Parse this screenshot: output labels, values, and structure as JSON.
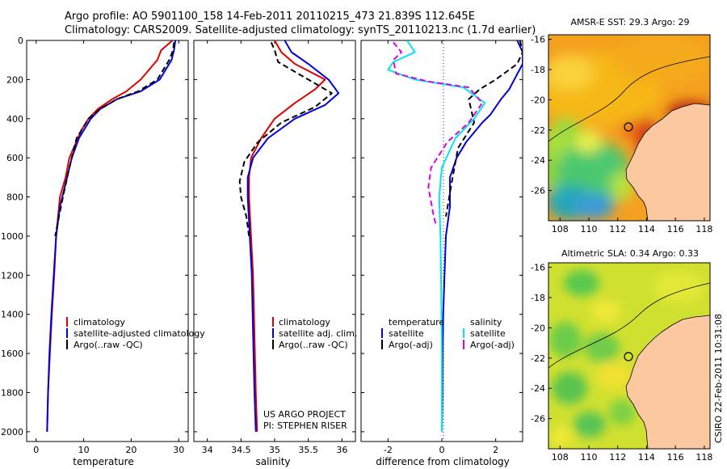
{
  "header": {
    "line1": "Argo profile: AO 5901100_158 14-Feb-2011 20110215_473 21.839S 112.645E",
    "line2": "Climatology: CARS2009. Satellite-adjusted climatology: synTS_20110213.nc (1.7d earlier)"
  },
  "colors": {
    "climatology": "#e00000",
    "satellite": "#0000dd",
    "argo": "#000000",
    "satellite_salinity": "#00e5ee",
    "argo_adj_salinity": "#e000e0",
    "land": "#fbc8a0"
  },
  "credit": {
    "project": "US ARGO PROJECT",
    "pi": "PI: STEPHEN RISER",
    "stamp": "CSIRO 22-Feb-2011 10:31:08"
  },
  "chart_data": [
    {
      "type": "line",
      "xlabel": "temperature",
      "ylabel": "",
      "xlim": [
        -2,
        32
      ],
      "ylim": [
        2050,
        0
      ],
      "xticks": [
        "0",
        "10",
        "20",
        "30"
      ],
      "yticks": [
        "0",
        "200",
        "400",
        "600",
        "800",
        "1000",
        "1200",
        "1400",
        "1600",
        "1800",
        "2000"
      ],
      "legend": {
        "position": "bottom-right",
        "entries": [
          "climatology",
          "satellite-adjusted climatology",
          "Argo(..raw -QC)"
        ]
      },
      "series": [
        {
          "name": "climatology",
          "color": "#e00000",
          "dash": "",
          "x": [
            28.7,
            26.3,
            25.5,
            22.0,
            19.0,
            16.0,
            13.0,
            11.0,
            9.5,
            7.0,
            6.2,
            5.0,
            4.2,
            3.8,
            3.3,
            2.9,
            2.5,
            2.3
          ],
          "y": [
            0,
            50,
            100,
            200,
            260,
            300,
            350,
            400,
            460,
            600,
            700,
            800,
            1000,
            1200,
            1400,
            1600,
            1800,
            2000
          ]
        },
        {
          "name": "satellite-adjusted climatology",
          "color": "#0000dd",
          "dash": "",
          "x": [
            29.3,
            29.0,
            28.5,
            26.0,
            22.0,
            17.0,
            13.5,
            11.5,
            9.0,
            7.5,
            6.0,
            5.0,
            4.2,
            3.7,
            3.2,
            2.8,
            2.5,
            2.3
          ],
          "y": [
            0,
            50,
            100,
            200,
            260,
            300,
            350,
            400,
            500,
            600,
            750,
            850,
            1000,
            1200,
            1400,
            1600,
            1800,
            2000
          ]
        },
        {
          "name": "Argo(..raw -QC)",
          "color": "#000000",
          "dash": "7,4",
          "x": [
            29.0,
            28.8,
            28.0,
            25.5,
            21.5,
            17.0,
            13.5,
            11.0,
            8.5,
            7.0,
            5.8,
            4.8,
            4.0
          ],
          "y": [
            10,
            50,
            100,
            200,
            260,
            300,
            350,
            400,
            500,
            650,
            780,
            900,
            1000
          ]
        }
      ]
    },
    {
      "type": "line",
      "xlabel": "salinity",
      "xlim": [
        33.8,
        36.2
      ],
      "ylim": [
        2050,
        0
      ],
      "xticks": [
        "34",
        "34.5",
        "35",
        "35.5",
        "36"
      ],
      "legend": {
        "position": "bottom-right",
        "entries": [
          "climatology",
          "satellite adj. clim.",
          "Argo(..raw -QC)"
        ]
      },
      "series": [
        {
          "name": "climatology",
          "color": "#e00000",
          "dash": "",
          "x": [
            35.0,
            35.1,
            35.3,
            35.75,
            35.6,
            35.3,
            35.0,
            34.8,
            34.65,
            34.62,
            34.62,
            34.65,
            34.68,
            34.7,
            34.72,
            34.74
          ],
          "y": [
            0,
            60,
            120,
            200,
            250,
            320,
            400,
            500,
            600,
            700,
            800,
            1000,
            1200,
            1500,
            1800,
            2000
          ]
        },
        {
          "name": "satellite adj. clim.",
          "color": "#0000dd",
          "dash": "",
          "x": [
            35.15,
            35.25,
            35.5,
            35.8,
            35.95,
            35.75,
            35.3,
            34.9,
            34.68,
            34.6,
            34.6,
            34.63,
            34.66,
            34.68,
            34.7,
            34.72
          ],
          "y": [
            0,
            60,
            120,
            200,
            270,
            330,
            400,
            500,
            600,
            700,
            800,
            1000,
            1200,
            1500,
            1800,
            2000
          ]
        },
        {
          "name": "Argo(..raw -QC)",
          "color": "#000000",
          "dash": "7,4",
          "x": [
            34.95,
            35.0,
            35.05,
            35.5,
            35.85,
            35.6,
            35.1,
            34.75,
            34.55,
            34.48,
            34.5,
            34.58,
            34.62
          ],
          "y": [
            10,
            50,
            110,
            200,
            270,
            340,
            420,
            520,
            620,
            720,
            800,
            900,
            1000
          ]
        }
      ]
    },
    {
      "type": "line",
      "xlabel": "difference from climatology",
      "xlim": [
        -3,
        3
      ],
      "ylim": [
        2050,
        0
      ],
      "xticks": [
        "-2",
        "0",
        "2"
      ],
      "legend": {
        "position": "bottom",
        "entries": [
          "temperature",
          "satellite",
          "Argo(-adj)",
          "salinity",
          "satellite",
          "Argo(-adj)"
        ]
      },
      "series": [
        {
          "name": "temperature satellite",
          "color": "#0000dd",
          "dash": "",
          "x": [
            2.8,
            3.0,
            3.0,
            2.5,
            2.2,
            1.8,
            1.5,
            0.9,
            0.55,
            0.3,
            0.3,
            0.15,
            0.1,
            0.05,
            0.03,
            0.02,
            0.0
          ],
          "y": [
            0,
            60,
            120,
            250,
            300,
            380,
            420,
            520,
            600,
            700,
            850,
            1000,
            1200,
            1400,
            1600,
            1800,
            2000
          ]
        },
        {
          "name": "temperature Argo(-adj)",
          "color": "#000000",
          "dash": "7,4",
          "x": [
            2.9,
            3.0,
            2.8,
            2.0,
            1.4,
            1.0,
            1.2,
            0.6,
            0.4,
            0.15
          ],
          "y": [
            0,
            60,
            120,
            200,
            250,
            300,
            420,
            550,
            700,
            900
          ]
        },
        {
          "name": "salinity satellite",
          "color": "#00e5ee",
          "dash": "",
          "x": [
            -1.3,
            -1.0,
            -1.8,
            -2.0,
            -1.0,
            0.8,
            1.6,
            1.2,
            0.5,
            0.0,
            -0.1,
            -0.05,
            -0.02,
            0.0,
            0.0,
            0.0
          ],
          "y": [
            0,
            60,
            110,
            150,
            200,
            240,
            320,
            400,
            500,
            650,
            800,
            1000,
            1300,
            1600,
            1800,
            2000
          ]
        },
        {
          "name": "salinity Argo(-adj)",
          "color": "#e000e0",
          "dash": "7,4",
          "x": [
            -1.8,
            -1.5,
            -1.8,
            -1.7,
            -0.5,
            1.0,
            1.5,
            1.0,
            0.2,
            -0.4,
            -0.5,
            -0.3,
            -0.2
          ],
          "y": [
            10,
            60,
            100,
            170,
            210,
            240,
            320,
            420,
            520,
            650,
            750,
            900,
            950
          ]
        }
      ]
    },
    {
      "type": "heatmap",
      "title": "AMSR-E SST: 29.3 Argo: 29",
      "xticks": [
        "108",
        "110",
        "112",
        "114",
        "116",
        "118"
      ],
      "yticks": [
        "-16",
        "-18",
        "-20",
        "-22",
        "-24",
        "-26"
      ],
      "xlim": [
        107.2,
        118.4
      ],
      "ylim": [
        -28,
        -15.7
      ],
      "argo_position": {
        "lon": 112.645,
        "lat": -21.839
      }
    },
    {
      "type": "heatmap",
      "title": "Altimetric SLA: 0.34 Argo: 0.33",
      "xticks": [
        "108",
        "110",
        "112",
        "114",
        "116",
        "118"
      ],
      "yticks": [
        "-16",
        "-18",
        "-20",
        "-22",
        "-24",
        "-26"
      ],
      "xlim": [
        107.2,
        118.4
      ],
      "ylim": [
        -28,
        -15.7
      ],
      "argo_position": {
        "lon": 112.645,
        "lat": -21.839
      }
    }
  ]
}
